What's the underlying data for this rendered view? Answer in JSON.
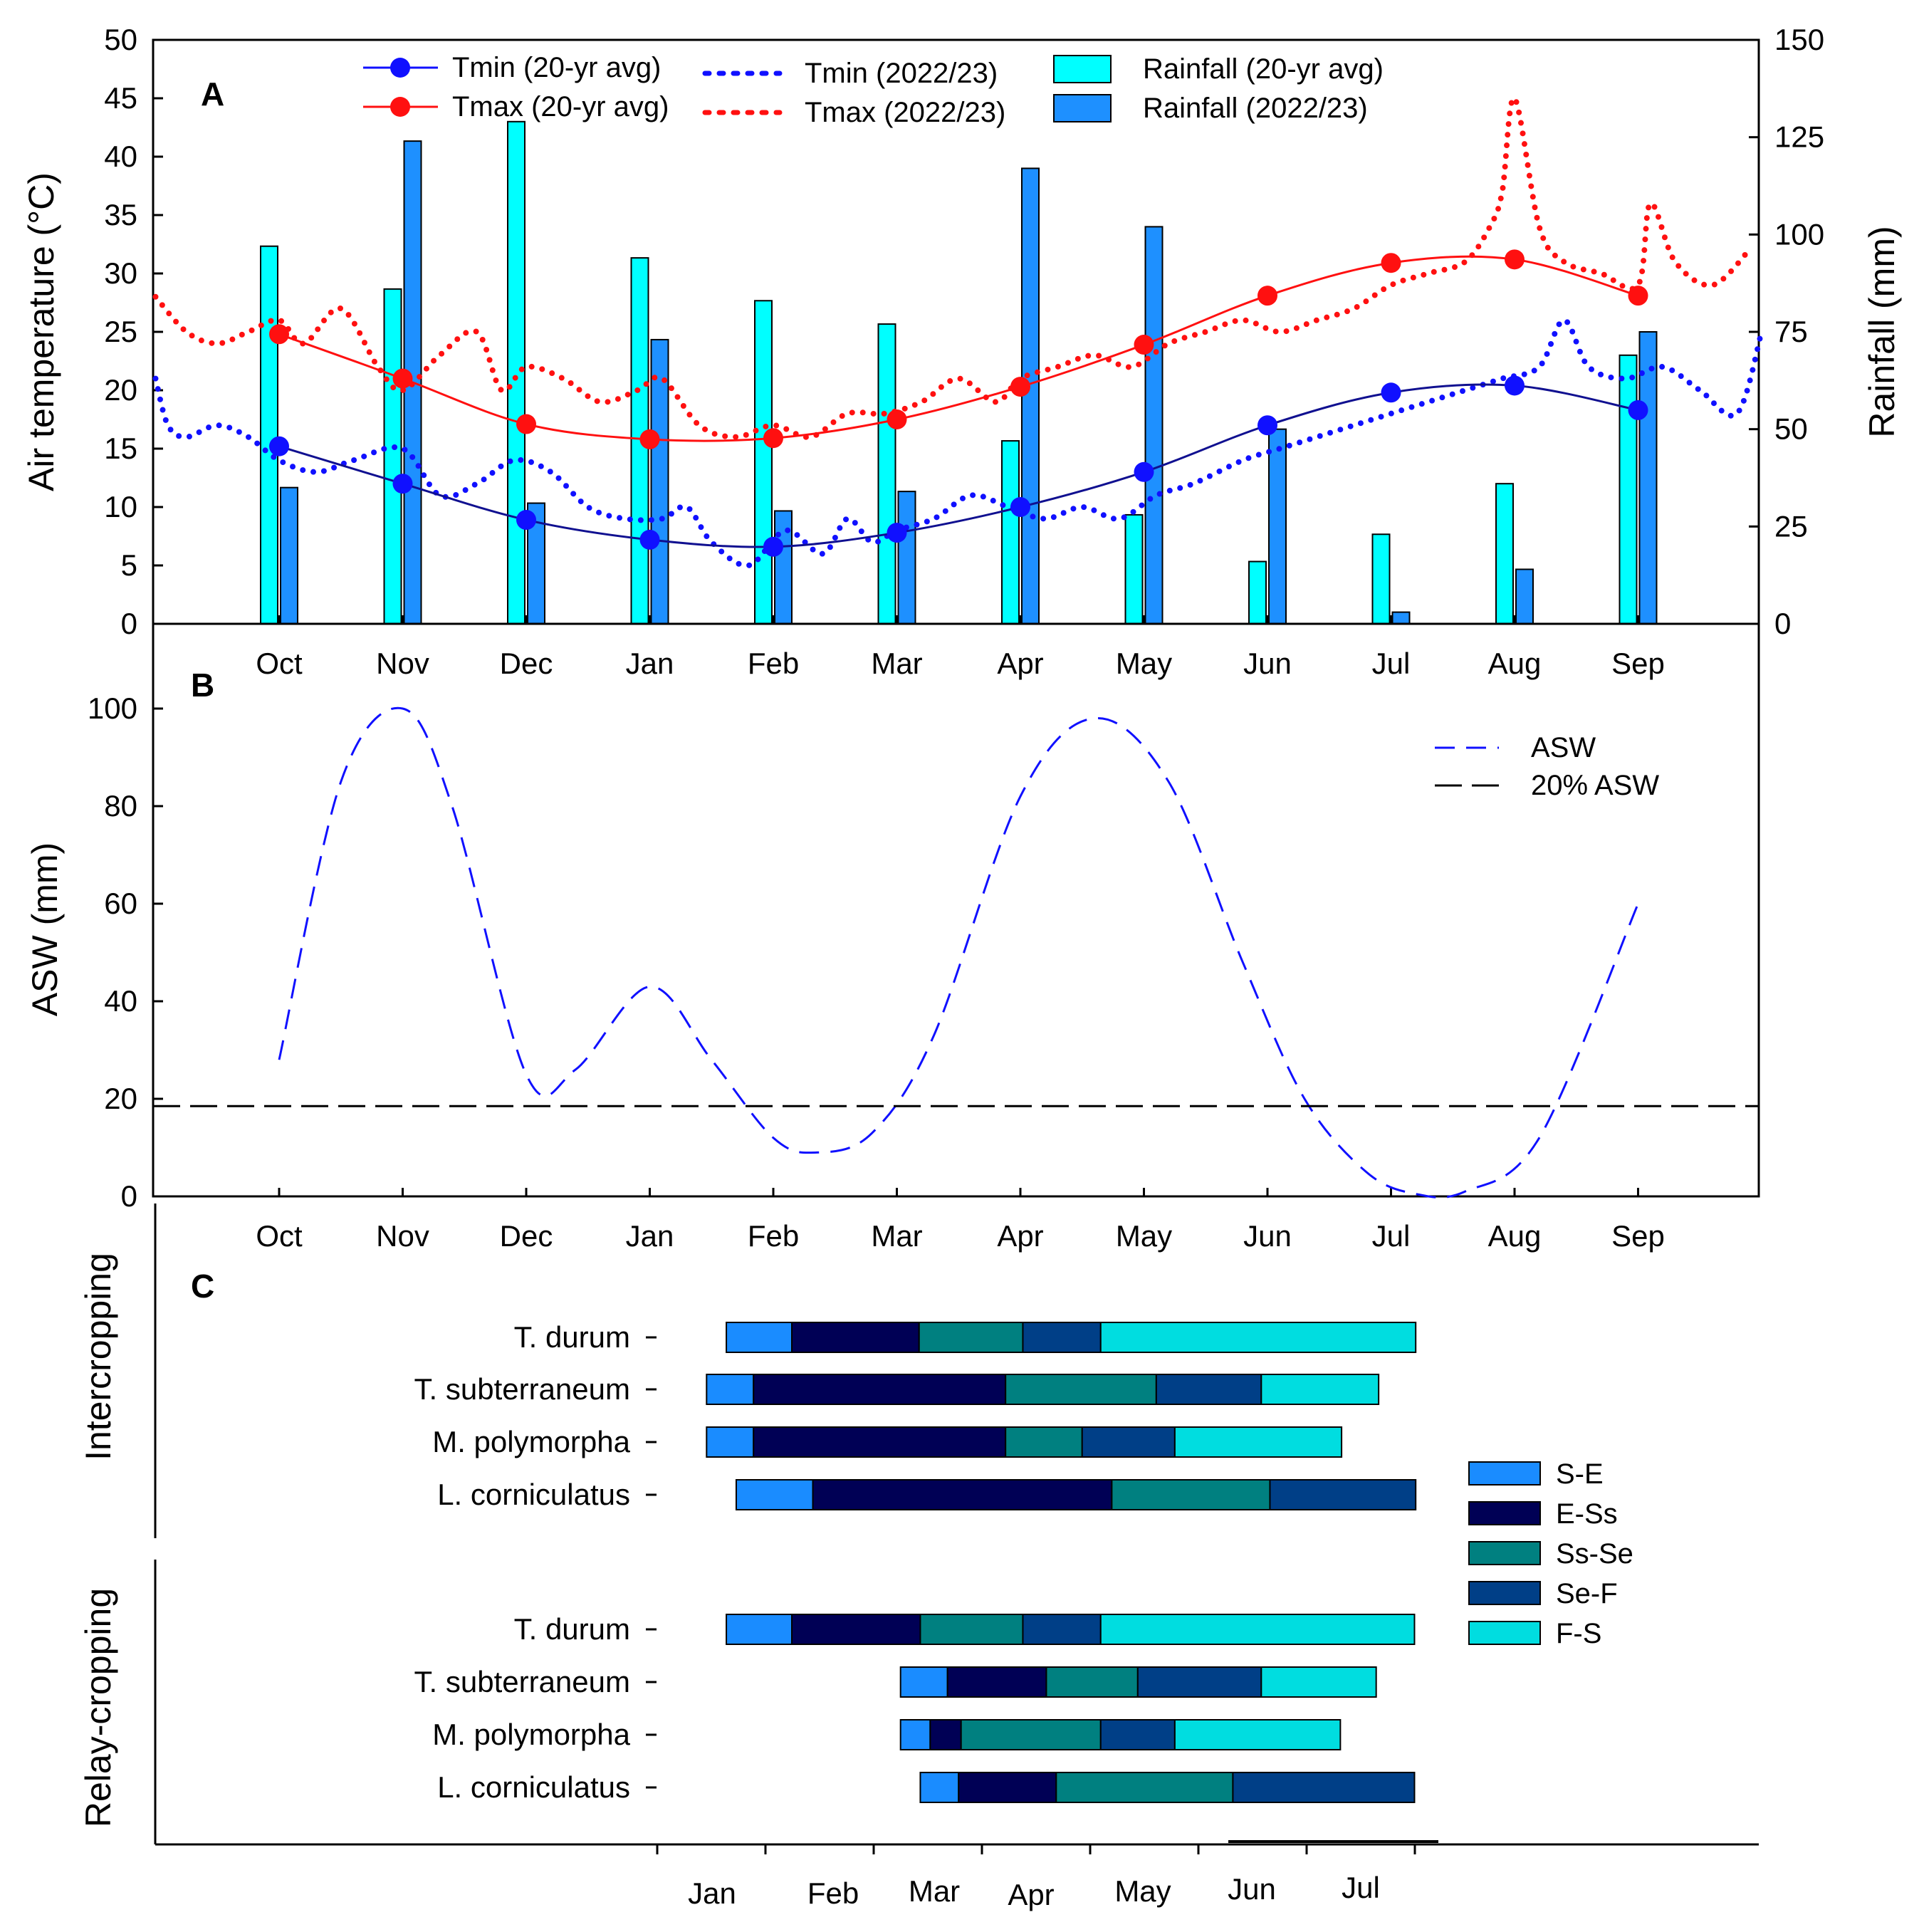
{
  "months": [
    "Oct",
    "Nov",
    "Dec",
    "Jan",
    "Feb",
    "Mar",
    "Apr",
    "May",
    "Jun",
    "Jul",
    "Aug",
    "Sep"
  ],
  "chart_data": [
    {
      "panel": "A",
      "type": "line",
      "ylabel": "Air temperature (°C)",
      "y2label": "Rainfall (mm)",
      "ylim": [
        0,
        50
      ],
      "yticks": [
        0,
        5,
        10,
        15,
        20,
        25,
        30,
        35,
        40,
        45,
        50
      ],
      "y2lim": [
        0,
        150
      ],
      "y2ticks": [
        0,
        25,
        50,
        75,
        100,
        125,
        150
      ],
      "xlim": [
        -1,
        12
      ],
      "series": [
        {
          "name": "Tmin (20-yr avg)",
          "color": "#1010ff",
          "values": [
            15.2,
            12.0,
            8.9,
            7.2,
            6.6,
            7.8,
            10.0,
            13.0,
            17.0,
            19.8,
            20.4,
            18.3
          ]
        },
        {
          "name": "Tmax (20-yr avg)",
          "color": "#ff1010",
          "values": [
            24.8,
            21.0,
            17.1,
            15.8,
            15.9,
            17.5,
            20.3,
            23.9,
            28.1,
            30.9,
            31.2,
            28.1
          ]
        },
        {
          "name": "Tmin (2022/23)",
          "color": "#1010ff",
          "x": [
            -1,
            -0.9,
            -0.75,
            -0.5,
            -0.25,
            0,
            0.3,
            0.6,
            1,
            1.3,
            1.6,
            1.9,
            2.2,
            2.5,
            2.8,
            3.1,
            3.3,
            3.5,
            3.8,
            4.1,
            4.4,
            4.6,
            4.8,
            5.0,
            5.3,
            5.6,
            5.9,
            6.2,
            6.5,
            6.8,
            7.1,
            7.4,
            7.8,
            8.1,
            8.4,
            8.7,
            9.0,
            9.3,
            9.6,
            9.9,
            10.2,
            10.4,
            10.6,
            10.9,
            11.2,
            11.5,
            11.8,
            12.0
          ],
          "values": [
            21,
            17,
            16,
            17,
            16,
            14,
            13,
            14,
            15,
            11,
            12,
            14,
            13,
            10,
            9,
            9,
            10,
            7,
            5,
            8,
            6,
            9,
            7,
            8,
            9,
            11,
            10,
            9,
            10,
            9,
            11,
            12,
            14,
            15,
            16,
            17,
            18,
            19,
            20,
            21,
            22,
            26,
            22,
            21,
            22,
            20,
            18,
            25
          ]
        },
        {
          "name": "Tmax (2022/23)",
          "color": "#ff1010",
          "x": [
            -1,
            -0.75,
            -0.5,
            -0.25,
            0,
            0.2,
            0.5,
            0.8,
            1.0,
            1.3,
            1.6,
            1.8,
            2.0,
            2.3,
            2.6,
            2.9,
            3.1,
            3.4,
            3.7,
            4.0,
            4.3,
            4.6,
            4.9,
            5.2,
            5.5,
            5.8,
            6.0,
            6.3,
            6.6,
            6.9,
            7.2,
            7.5,
            7.8,
            8.1,
            8.4,
            8.7,
            9.0,
            9.3,
            9.6,
            9.8,
            9.9,
            10.0,
            10.2,
            10.4,
            10.7,
            11.0,
            11.1,
            11.3,
            11.6,
            11.9
          ],
          "values": [
            28,
            25,
            24,
            25,
            26,
            24,
            27,
            22,
            20,
            23,
            25,
            20,
            22,
            21,
            19,
            20,
            21,
            17,
            16,
            17,
            16,
            18,
            18,
            19,
            21,
            19,
            21,
            22,
            23,
            22,
            24,
            25,
            26,
            25,
            26,
            27,
            29,
            30,
            31,
            34,
            37,
            45,
            34,
            31,
            30,
            29,
            36,
            31,
            29,
            32
          ]
        },
        {
          "name": "Rainfall (20-yr avg)",
          "axis": "y2",
          "kind": "bar",
          "color": "#00ffff",
          "values": [
            97,
            86,
            129,
            94,
            83,
            77,
            47,
            28,
            16,
            23,
            36,
            69
          ]
        },
        {
          "name": "Rainfall (2022/23)",
          "axis": "y2",
          "kind": "bar",
          "color": "#1e90ff",
          "values": [
            35,
            124,
            31,
            73,
            29,
            34,
            117,
            102,
            50,
            3,
            14,
            75
          ]
        }
      ]
    },
    {
      "panel": "B",
      "type": "line",
      "ylabel": "ASW (mm)",
      "ylim": [
        0,
        120
      ],
      "yticks": [
        0,
        20,
        40,
        60,
        80,
        100
      ],
      "xlim": [
        -1,
        12
      ],
      "series": [
        {
          "name": "ASW",
          "color": "#1010ff",
          "x": [
            0,
            0.5,
            1.0,
            1.4,
            2.0,
            2.4,
            3.0,
            3.5,
            4.0,
            4.35,
            4.8,
            5.3,
            6.0,
            6.6,
            7.2,
            7.8,
            8.3,
            8.8,
            9.2,
            9.6,
            10.2,
            11.0
          ],
          "values": [
            28,
            85,
            100,
            80,
            25,
            26,
            43,
            28,
            12,
            9,
            13,
            33,
            82,
            98,
            85,
            48,
            20,
            5,
            0.5,
            1,
            12,
            60
          ]
        },
        {
          "name": "20% ASW",
          "color": "#000000",
          "constant": 18.5
        }
      ]
    },
    {
      "panel": "C",
      "type": "bar",
      "orientation": "horizontal-stacked",
      "xticks": [
        "Jan",
        "Feb",
        "Mar",
        "Apr",
        "May",
        "Jun",
        "Jul"
      ],
      "stages": [
        {
          "name": "S-E",
          "color": "#1a8cff"
        },
        {
          "name": "E-Ss",
          "color": "#000055"
        },
        {
          "name": "Ss-Se",
          "color": "#008080"
        },
        {
          "name": "Se-F",
          "color": "#003f87"
        },
        {
          "name": "F-S",
          "color": "#00dde0"
        }
      ],
      "groups": [
        {
          "name": "Intercropping",
          "crops": [
            {
              "name": "T. durum",
              "bounds": [
                3.62,
                4.15,
                5.18,
                6.02,
                6.65,
                9.2
              ]
            },
            {
              "name": "T. subterraneum",
              "bounds": [
                3.46,
                3.84,
                5.88,
                7.1,
                7.95,
                8.9
              ]
            },
            {
              "name": "M. polymorpha",
              "bounds": [
                3.46,
                3.84,
                5.88,
                6.5,
                7.25,
                8.6
              ]
            },
            {
              "name": "L. corniculatus",
              "bounds": [
                3.7,
                4.32,
                6.74,
                8.02,
                9.2
              ]
            }
          ]
        },
        {
          "name": "Relay-cropping",
          "crops": [
            {
              "name": "T. durum",
              "bounds": [
                3.62,
                4.15,
                5.19,
                6.02,
                6.65,
                9.19
              ]
            },
            {
              "name": "T. subterraneum",
              "bounds": [
                5.03,
                5.41,
                6.21,
                6.95,
                7.95,
                8.88
              ]
            },
            {
              "name": "M. polymorpha",
              "bounds": [
                5.03,
                5.27,
                5.52,
                6.65,
                7.25,
                8.59
              ]
            },
            {
              "name": "L. corniculatus",
              "bounds": [
                5.19,
                5.5,
                6.29,
                7.72,
                9.19
              ]
            }
          ]
        }
      ]
    }
  ]
}
